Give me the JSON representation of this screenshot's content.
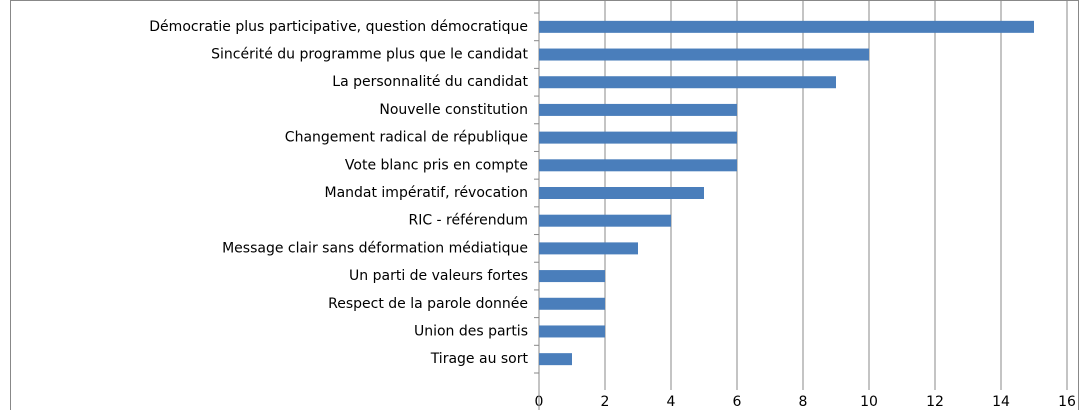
{
  "chart_data": {
    "type": "bar",
    "orientation": "horizontal",
    "categories": [
      "Démocratie plus participative, question démocratique",
      "Sincérité du programme  plus que le candidat",
      "La personnalité du candidat",
      "Nouvelle constitution",
      "Changement radical de république",
      "Vote blanc pris en compte",
      "Mandat impératif, révocation",
      "RIC - référendum",
      "Message clair sans déformation médiatique",
      "Un parti de valeurs fortes",
      "Respect de la parole donnée",
      "Union des partis",
      "Tirage au sort"
    ],
    "values": [
      15,
      10,
      9,
      6,
      6,
      6,
      5,
      4,
      3,
      2,
      2,
      2,
      1
    ],
    "color": "#4a7ebb",
    "xlim": [
      0,
      16
    ],
    "xticks": [
      0,
      2,
      4,
      6,
      8,
      10,
      12,
      14,
      16
    ],
    "grid": true
  }
}
